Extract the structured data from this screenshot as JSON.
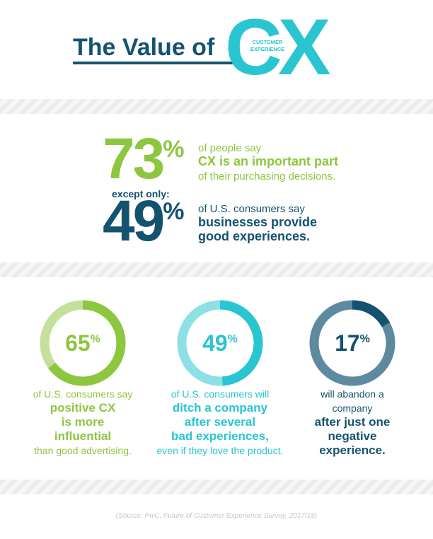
{
  "header": {
    "title": "The Value of",
    "logo": "CX",
    "logo_caption": [
      "CUSTOMER",
      "EXPERIENCE"
    ]
  },
  "stats": [
    {
      "value": 73,
      "unit": "%",
      "color": "#8dc63f",
      "lead": [
        "of people say"
      ],
      "highlight": [
        "CX is an important part"
      ],
      "tail": [
        "of their purchasing decisions."
      ]
    },
    {
      "value": 49,
      "unit": "%",
      "color": "#14536f",
      "lead": [
        "of U.S. consumers say"
      ],
      "highlight": [
        "businesses provide",
        "good experiences."
      ],
      "tail": []
    }
  ],
  "connector": "except only:",
  "donuts": [
    {
      "value": 65,
      "unit": "%",
      "color": "#8dc63f",
      "track": "#c5e09b",
      "lead": [
        "of U.S. consumers say"
      ],
      "highlight": [
        "positive CX",
        "is more",
        "influential"
      ],
      "tail": [
        "than good advertising."
      ]
    },
    {
      "value": 49,
      "unit": "%",
      "color": "#29c5d0",
      "track": "#8de0e5",
      "lead": [
        "of U.S. consumers will"
      ],
      "highlight": [
        "ditch a company",
        "after several",
        "bad experiences,"
      ],
      "tail": [
        "even if they love the product."
      ]
    },
    {
      "value": 17,
      "unit": "%",
      "color": "#14536f",
      "track": "#5d8aa0",
      "lead": [
        "will abandon a",
        "company"
      ],
      "highlight": [
        "after just one",
        "negative",
        "experience."
      ],
      "tail": []
    }
  ],
  "source": "(Source: PwC, Future of Customer Experience Survey, 2017/18)"
}
